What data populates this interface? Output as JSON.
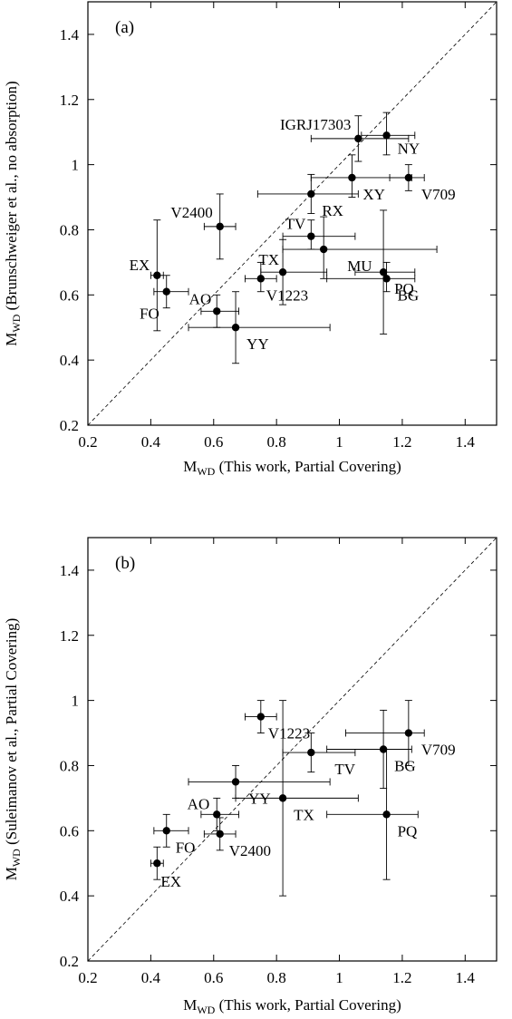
{
  "chart_data": [
    {
      "type": "scatter",
      "panel_label": "(a)",
      "xlabel_main": "M",
      "xlabel_sub": "WD",
      "xlabel_rest": " (This work, Partial Covering)",
      "ylabel_main": "M",
      "ylabel_sub": "WD",
      "ylabel_rest": " (Brunschweiger et al., no absorption)",
      "xlim": [
        0.2,
        1.5
      ],
      "ylim": [
        0.2,
        1.5
      ],
      "xticks": [
        "0.2",
        "0.4",
        "0.6",
        "0.8",
        "1",
        "1.2",
        "1.4"
      ],
      "yticks": [
        "0.2",
        "0.4",
        "0.6",
        "0.8",
        "1",
        "1.2",
        "1.4"
      ],
      "diagonal": true,
      "points": [
        {
          "label": "IGRJ17303",
          "x": 1.06,
          "y": 1.08,
          "xerr": [
            0.91,
            1.22
          ],
          "yerr": [
            1.01,
            1.15
          ]
        },
        {
          "label": "NY",
          "x": 1.15,
          "y": 1.09,
          "xerr": [
            1.07,
            1.24
          ],
          "yerr": [
            1.03,
            1.16
          ]
        },
        {
          "label": "XY",
          "x": 1.04,
          "y": 0.96,
          "xerr": [
            0.91,
            1.23
          ],
          "yerr": [
            0.9,
            1.03
          ]
        },
        {
          "label": "V709",
          "x": 1.22,
          "y": 0.96,
          "xerr": [
            1.16,
            1.27
          ],
          "yerr": [
            0.92,
            1.0
          ]
        },
        {
          "label": "RX",
          "x": 0.91,
          "y": 0.91,
          "xerr": [
            0.74,
            1.06
          ],
          "yerr": [
            0.85,
            0.97
          ]
        },
        {
          "label": "V2400",
          "x": 0.62,
          "y": 0.81,
          "xerr": [
            0.57,
            0.67
          ],
          "yerr": [
            0.71,
            0.91
          ]
        },
        {
          "label": "TV",
          "x": 0.91,
          "y": 0.78,
          "xerr": [
            0.82,
            1.05
          ],
          "yerr": [
            0.74,
            0.83
          ]
        },
        {
          "label": "MU",
          "x": 0.95,
          "y": 0.74,
          "xerr": [
            0.82,
            1.31
          ],
          "yerr": [
            0.65,
            0.84
          ]
        },
        {
          "label": "PQ",
          "x": 1.14,
          "y": 0.67,
          "xerr": [
            1.05,
            1.24
          ],
          "yerr": [
            0.48,
            0.86
          ]
        },
        {
          "label": "BG",
          "x": 1.15,
          "y": 0.65,
          "xerr": [
            0.96,
            1.24
          ],
          "yerr": [
            0.61,
            0.7
          ]
        },
        {
          "label": "EX",
          "x": 0.42,
          "y": 0.66,
          "xerr": [
            0.4,
            0.44
          ],
          "yerr": [
            0.49,
            0.83
          ]
        },
        {
          "label": "FO",
          "x": 0.45,
          "y": 0.61,
          "xerr": [
            0.41,
            0.52
          ],
          "yerr": [
            0.56,
            0.66
          ]
        },
        {
          "label": "TX",
          "x": 0.82,
          "y": 0.67,
          "xerr": [
            0.75,
            0.96
          ],
          "yerr": [
            0.57,
            0.77
          ]
        },
        {
          "label": "V1223",
          "x": 0.75,
          "y": 0.65,
          "xerr": [
            0.7,
            0.8
          ],
          "yerr": [
            0.61,
            0.7
          ]
        },
        {
          "label": "AO",
          "x": 0.61,
          "y": 0.55,
          "xerr": [
            0.56,
            0.68
          ],
          "yerr": [
            0.5,
            0.6
          ]
        },
        {
          "label": "YY",
          "x": 0.67,
          "y": 0.5,
          "xerr": [
            0.52,
            0.97
          ],
          "yerr": [
            0.39,
            0.61
          ]
        }
      ]
    },
    {
      "type": "scatter",
      "panel_label": "(b)",
      "xlabel_main": "M",
      "xlabel_sub": "WD",
      "xlabel_rest": " (This work, Partial Covering)",
      "ylabel_main": "M",
      "ylabel_sub": "WD",
      "ylabel_rest": " (Suleimanov et al., Partial Covering)",
      "xlim": [
        0.2,
        1.5
      ],
      "ylim": [
        0.2,
        1.5
      ],
      "xticks": [
        "0.2",
        "0.4",
        "0.6",
        "0.8",
        "1",
        "1.2",
        "1.4"
      ],
      "yticks": [
        "0.2",
        "0.4",
        "0.6",
        "0.8",
        "1",
        "1.2",
        "1.4"
      ],
      "diagonal": true,
      "points": [
        {
          "label": "V1223",
          "x": 0.75,
          "y": 0.95,
          "xerr": [
            0.7,
            0.8
          ],
          "yerr": [
            0.9,
            1.0
          ]
        },
        {
          "label": "V709",
          "x": 1.22,
          "y": 0.9,
          "xerr": [
            1.02,
            1.27
          ],
          "yerr": [
            0.8,
            1.0
          ]
        },
        {
          "label": "BG",
          "x": 1.14,
          "y": 0.85,
          "xerr": [
            0.96,
            1.23
          ],
          "yerr": [
            0.73,
            0.97
          ]
        },
        {
          "label": "TV",
          "x": 0.91,
          "y": 0.84,
          "xerr": [
            0.82,
            1.05
          ],
          "yerr": [
            0.78,
            0.9
          ]
        },
        {
          "label": "YY",
          "x": 0.67,
          "y": 0.75,
          "xerr": [
            0.52,
            0.97
          ],
          "yerr": [
            0.7,
            0.8
          ]
        },
        {
          "label": "TX",
          "x": 0.82,
          "y": 0.7,
          "xerr": [
            0.67,
            1.06
          ],
          "yerr": [
            0.4,
            1.0
          ]
        },
        {
          "label": "AO",
          "x": 0.61,
          "y": 0.65,
          "xerr": [
            0.56,
            0.68
          ],
          "yerr": [
            0.6,
            0.7
          ]
        },
        {
          "label": "PQ",
          "x": 1.15,
          "y": 0.65,
          "xerr": [
            0.96,
            1.25
          ],
          "yerr": [
            0.45,
            0.85
          ]
        },
        {
          "label": "FO",
          "x": 0.45,
          "y": 0.6,
          "xerr": [
            0.41,
            0.52
          ],
          "yerr": [
            0.55,
            0.65
          ]
        },
        {
          "label": "V2400",
          "x": 0.62,
          "y": 0.59,
          "xerr": [
            0.57,
            0.67
          ],
          "yerr": [
            0.54,
            0.64
          ]
        },
        {
          "label": "EX",
          "x": 0.42,
          "y": 0.5,
          "xerr": [
            0.4,
            0.44
          ],
          "yerr": [
            0.45,
            0.55
          ]
        }
      ]
    }
  ]
}
